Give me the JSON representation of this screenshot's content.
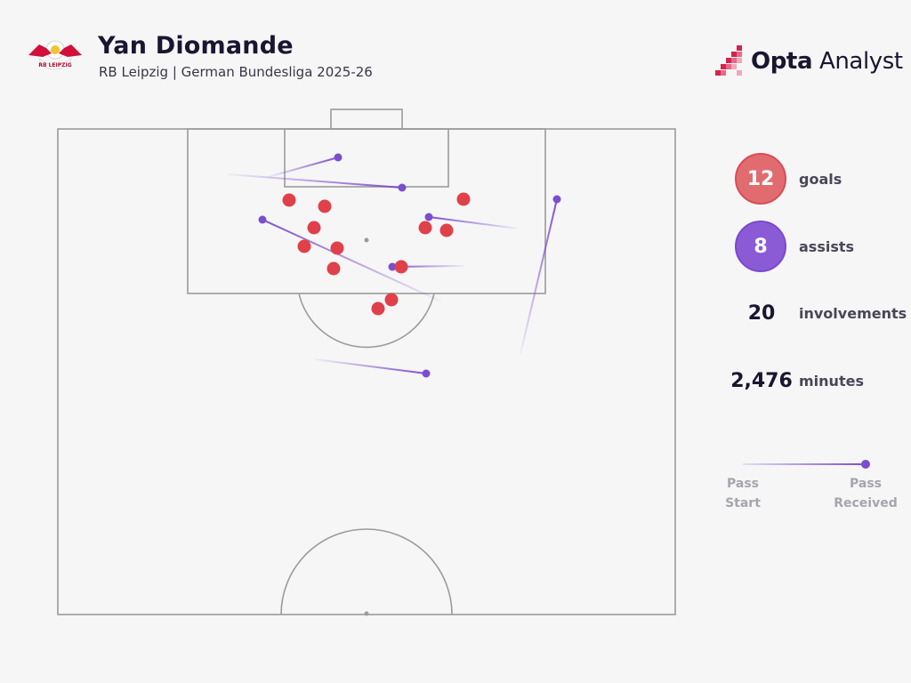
{
  "header": {
    "title": "Yan Diomande",
    "subtitle": "RB Leipzig | German Bundesliga 2025-26",
    "club_logo_icon": "rb-leipzig-crest-icon",
    "club_logo_text": "RB LEIPZIG"
  },
  "brand": {
    "icon": "opta-analyst-logo-icon",
    "name_bold": "Opta",
    "name_light": " Analyst",
    "accent_color": "#d6234d"
  },
  "stats": {
    "goals": {
      "value": "12",
      "label": "goals",
      "color": "#e06c70"
    },
    "assists": {
      "value": "8",
      "label": "assists",
      "color": "#8b5bd6"
    },
    "involvements": {
      "value": "20",
      "label": "involvements"
    },
    "minutes": {
      "value": "2,476",
      "label": "minutes"
    }
  },
  "legend": {
    "start_line1": "Pass",
    "start_line2": "Start",
    "end_line1": "Pass",
    "end_line2": "Received",
    "color": "#7c4dce"
  },
  "colors": {
    "goal_dot": "#e0404a",
    "assist_line": "#7c4dce",
    "pitch_line": "#9b9b9b",
    "background": "#f6f6f6"
  }
}
